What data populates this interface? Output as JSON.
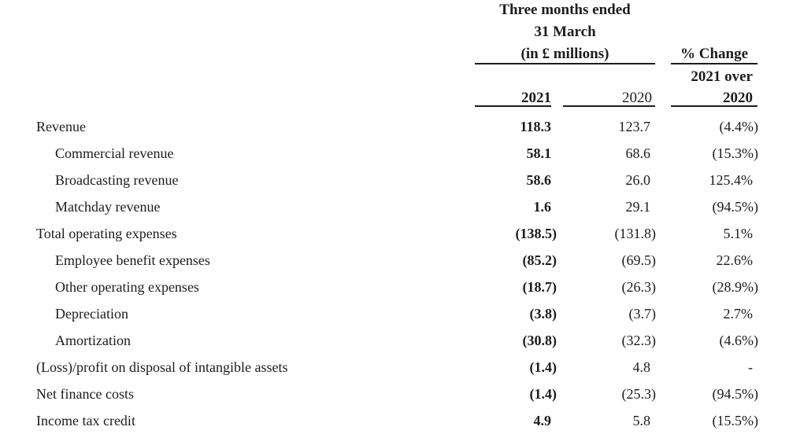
{
  "header": {
    "group_title_line1": "Three months ended",
    "group_title_line2": "31 March",
    "group_title_line3": "(in £ millions)",
    "pct_change_label": "% Change",
    "pct_change_sub": "2021 over",
    "col_2021": "2021",
    "col_2020": "2020",
    "pct_change_year": "2020"
  },
  "table": {
    "columns": [
      "label",
      "2021",
      "2020",
      "% Change 2021 over 2020"
    ],
    "rows": [
      {
        "label": "Revenue",
        "indent": false,
        "v2021": "118.3",
        "v2020": "123.7",
        "change": "(4.4%)"
      },
      {
        "label": "Commercial revenue",
        "indent": true,
        "v2021": "58.1",
        "v2020": "68.6",
        "change": "(15.3%)"
      },
      {
        "label": "Broadcasting revenue",
        "indent": true,
        "v2021": "58.6",
        "v2020": "26.0",
        "change": "125.4%"
      },
      {
        "label": "Matchday revenue",
        "indent": true,
        "v2021": "1.6",
        "v2020": "29.1",
        "change": "(94.5%)"
      },
      {
        "label": "Total operating expenses",
        "indent": false,
        "v2021": "(138.5)",
        "v2020": "(131.8)",
        "change": "5.1%"
      },
      {
        "label": "Employee benefit expenses",
        "indent": true,
        "v2021": "(85.2)",
        "v2020": "(69.5)",
        "change": "22.6%"
      },
      {
        "label": "Other operating expenses",
        "indent": true,
        "v2021": "(18.7)",
        "v2020": "(26.3)",
        "change": "(28.9%)"
      },
      {
        "label": "Depreciation",
        "indent": true,
        "v2021": "(3.8)",
        "v2020": "(3.7)",
        "change": "2.7%"
      },
      {
        "label": "Amortization",
        "indent": true,
        "v2021": "(30.8)",
        "v2020": "(32.3)",
        "change": "(4.6%)"
      },
      {
        "label": "(Loss)/profit on disposal of intangible assets",
        "indent": false,
        "v2021": "(1.4)",
        "v2020": "4.8",
        "change": "-"
      },
      {
        "label": "Net finance costs",
        "indent": false,
        "v2021": "(1.4)",
        "v2020": "(25.3)",
        "change": "(94.5%)"
      },
      {
        "label": "Income tax credit",
        "indent": false,
        "v2021": "4.9",
        "v2020": "5.8",
        "change": "(15.5%)"
      }
    ]
  },
  "colors": {
    "text": "#1c1c1c",
    "rule": "#1c1c1c",
    "background": "#ffffff"
  }
}
